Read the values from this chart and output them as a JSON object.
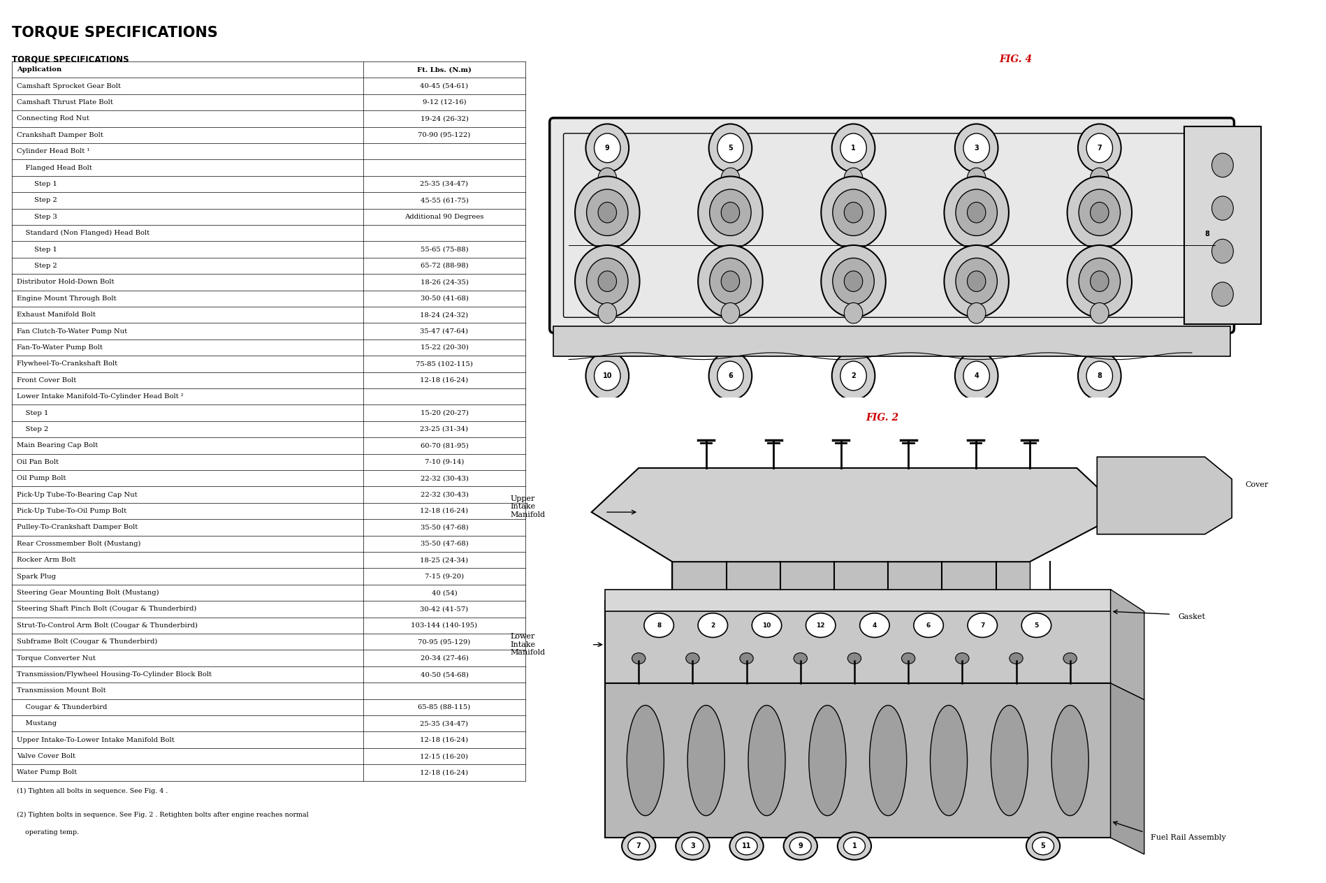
{
  "title": "TORQUE SPECIFICATIONS",
  "subtitle": "TORQUE SPECIFICATIONS",
  "col1_header": "Application",
  "col2_header": "Ft. Lbs. (N.m)",
  "rows": [
    [
      "Camshaft Sprocket Gear Bolt",
      "40-45 (54-61)",
      0
    ],
    [
      "Camshaft Thrust Plate Bolt",
      "9-12 (12-16)",
      0
    ],
    [
      "Connecting Rod Nut",
      "19-24 (26-32)",
      0
    ],
    [
      "Crankshaft Damper Bolt",
      "70-90 (95-122)",
      0
    ],
    [
      "Cylinder Head Bolt (1)",
      "",
      0
    ],
    [
      "    Flanged Head Bolt",
      "",
      1
    ],
    [
      "        Step 1",
      "25-35 (34-47)",
      2
    ],
    [
      "        Step 2",
      "45-55 (61-75)",
      2
    ],
    [
      "        Step 3",
      "Additional 90 Degrees",
      2
    ],
    [
      "    Standard (Non Flanged) Head Bolt",
      "",
      1
    ],
    [
      "        Step 1",
      "55-65 (75-88)",
      2
    ],
    [
      "        Step 2",
      "65-72 (88-98)",
      2
    ],
    [
      "Distributor Hold-Down Bolt",
      "18-26 (24-35)",
      0
    ],
    [
      "Engine Mount Through Bolt",
      "30-50 (41-68)",
      0
    ],
    [
      "Exhaust Manifold Bolt",
      "18-24 (24-32)",
      0
    ],
    [
      "Fan Clutch-To-Water Pump Nut",
      "35-47 (47-64)",
      0
    ],
    [
      "Fan-To-Water Pump Bolt",
      "15-22 (20-30)",
      0
    ],
    [
      "Flywheel-To-Crankshaft Bolt",
      "75-85 (102-115)",
      0
    ],
    [
      "Front Cover Bolt",
      "12-18 (16-24)",
      0
    ],
    [
      "Lower Intake Manifold-To-Cylinder Head Bolt (2)",
      "",
      0
    ],
    [
      "    Step 1",
      "15-20 (20-27)",
      1
    ],
    [
      "    Step 2",
      "23-25 (31-34)",
      1
    ],
    [
      "Main Bearing Cap Bolt",
      "60-70 (81-95)",
      0
    ],
    [
      "Oil Pan Bolt",
      "7-10 (9-14)",
      0
    ],
    [
      "Oil Pump Bolt",
      "22-32 (30-43)",
      0
    ],
    [
      "Pick-Up Tube-To-Bearing Cap Nut",
      "22-32 (30-43)",
      0
    ],
    [
      "Pick-Up Tube-To-Oil Pump Bolt",
      "12-18 (16-24)",
      0
    ],
    [
      "Pulley-To-Crankshaft Damper Bolt",
      "35-50 (47-68)",
      0
    ],
    [
      "Rear Crossmember Bolt (Mustang)",
      "35-50 (47-68)",
      0
    ],
    [
      "Rocker Arm Bolt",
      "18-25 (24-34)",
      0
    ],
    [
      "Spark Plug",
      "7-15 (9-20)",
      0
    ],
    [
      "Steering Gear Mounting Bolt (Mustang)",
      "40 (54)",
      0
    ],
    [
      "Steering Shaft Pinch Bolt (Cougar & Thunderbird)",
      "30-42 (41-57)",
      0
    ],
    [
      "Strut-To-Control Arm Bolt (Cougar & Thunderbird)",
      "103-144 (140-195)",
      0
    ],
    [
      "Subframe Bolt (Cougar & Thunderbird)",
      "70-95 (95-129)",
      0
    ],
    [
      "Torque Converter Nut",
      "20-34 (27-46)",
      0
    ],
    [
      "Transmission/Flywheel Housing-To-Cylinder Block Bolt",
      "40-50 (54-68)",
      0
    ],
    [
      "Transmission Mount Bolt",
      "",
      0
    ],
    [
      "    Cougar & Thunderbird",
      "65-85 (88-115)",
      1
    ],
    [
      "    Mustang",
      "25-35 (34-47)",
      1
    ],
    [
      "Upper Intake-To-Lower Intake Manifold Bolt",
      "12-18 (16-24)",
      0
    ],
    [
      "Valve Cover Bolt",
      "12-15 (16-20)",
      0
    ],
    [
      "Water Pump Bolt",
      "12-18 (16-24)",
      0
    ]
  ],
  "footnote1": "(1) Tighten all bolts in sequence. See Fig. 4 .",
  "footnote2": "(2) Tighten bolts in sequence. See Fig. 2 . Retighten bolts after engine reaches normal",
  "footnote2b": "    operating temp.",
  "fig4_label": "FIG. 4",
  "fig2_label": "FIG. 2",
  "fig_label_color": "#cc0000",
  "background_color": "#ffffff"
}
